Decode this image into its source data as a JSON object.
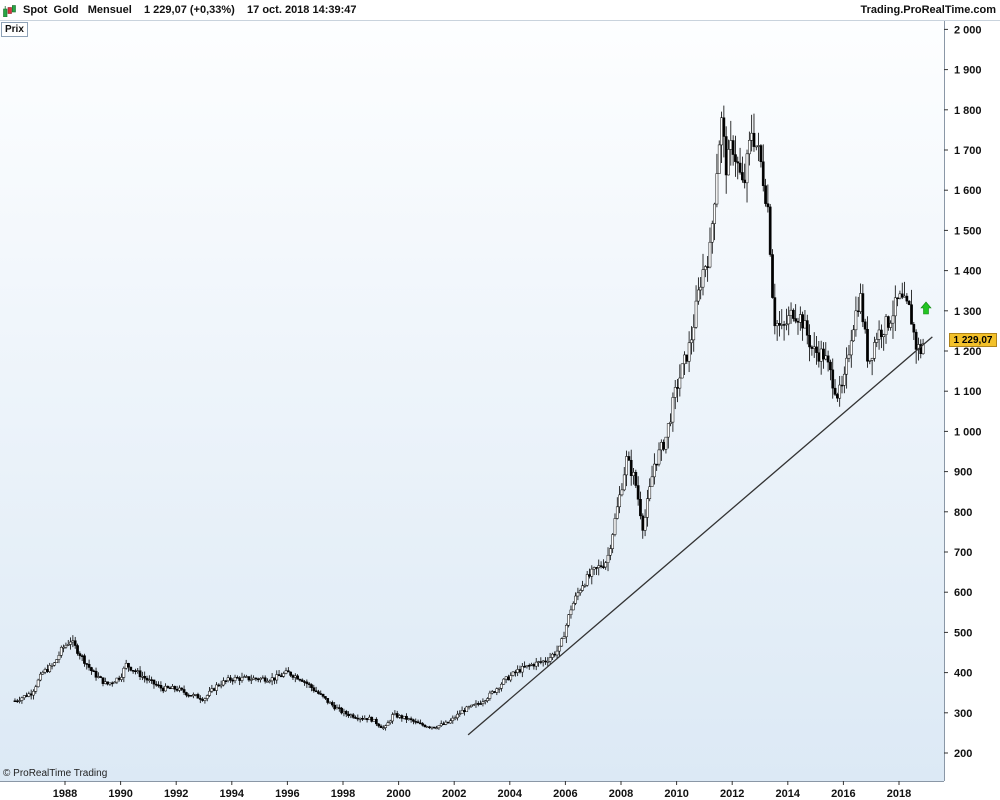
{
  "header": {
    "title": "Spot  Gold   Mensuel    1 229,07 (+0,33%)    17 oct. 2018 14:39:47",
    "site": "Trading.ProRealTime.com"
  },
  "panel_label": "Prix",
  "copyright": "© ProRealTime Trading",
  "last_price_label": "1 229,07",
  "colors": {
    "background": "#eaf2f9",
    "up_candle": "#ffffff",
    "down_candle": "#000000",
    "wick": "#000000",
    "trend_line": "#333333",
    "price_tag": "#f3c12a",
    "arrow": "#22c422"
  },
  "icons": [
    "logo-icon",
    "up-arrow-icon"
  ],
  "chart_data": {
    "type": "candlestick",
    "instrument": "Spot Gold",
    "interval": "Mensuel",
    "x_ticks": [
      "1988",
      "1990",
      "1992",
      "1994",
      "1996",
      "1998",
      "2000",
      "2002",
      "2004",
      "2006",
      "2008",
      "2010",
      "2012",
      "2014",
      "2016",
      "2018"
    ],
    "y_ticks": [
      "2 000",
      "1 900",
      "1 800",
      "1 700",
      "1 600",
      "1 500",
      "1 400",
      "1 300",
      "1 200",
      "1 100",
      "1 000",
      "900",
      "800",
      "700",
      "600",
      "500",
      "400",
      "300",
      "200"
    ],
    "y_range": [
      160,
      2030
    ],
    "x_range": [
      1986.15,
      1999.0
    ],
    "last_price": 1229.07,
    "trend_line": {
      "start": [
        2002.5,
        245
      ],
      "end": [
        2019.2,
        1235
      ]
    },
    "anchors": [
      [
        1986.2,
        330
      ],
      [
        1986.8,
        350
      ],
      [
        1987.2,
        400
      ],
      [
        1987.6,
        420
      ],
      [
        1987.9,
        460
      ],
      [
        1988.2,
        480
      ],
      [
        1988.6,
        440
      ],
      [
        1989.0,
        400
      ],
      [
        1989.5,
        370
      ],
      [
        1990.0,
        390
      ],
      [
        1990.2,
        420
      ],
      [
        1990.6,
        400
      ],
      [
        1991.0,
        380
      ],
      [
        1991.5,
        360
      ],
      [
        1992.0,
        360
      ],
      [
        1992.5,
        345
      ],
      [
        1993.0,
        335
      ],
      [
        1993.5,
        370
      ],
      [
        1994.0,
        385
      ],
      [
        1994.5,
        385
      ],
      [
        1995.0,
        385
      ],
      [
        1995.5,
        385
      ],
      [
        1996.0,
        400
      ],
      [
        1996.5,
        385
      ],
      [
        1997.0,
        355
      ],
      [
        1997.5,
        325
      ],
      [
        1998.0,
        300
      ],
      [
        1998.5,
        290
      ],
      [
        1999.0,
        285
      ],
      [
        1999.5,
        260
      ],
      [
        1999.8,
        295
      ],
      [
        2000.3,
        285
      ],
      [
        2000.8,
        270
      ],
      [
        2001.3,
        265
      ],
      [
        2001.8,
        275
      ],
      [
        2002.3,
        305
      ],
      [
        2002.8,
        320
      ],
      [
        2003.3,
        345
      ],
      [
        2003.8,
        380
      ],
      [
        2004.3,
        405
      ],
      [
        2004.8,
        420
      ],
      [
        2005.3,
        430
      ],
      [
        2005.8,
        460
      ],
      [
        2006.2,
        560
      ],
      [
        2006.6,
        620
      ],
      [
        2007.0,
        650
      ],
      [
        2007.5,
        680
      ],
      [
        2007.9,
        820
      ],
      [
        2008.2,
        930
      ],
      [
        2008.5,
        880
      ],
      [
        2008.8,
        760
      ],
      [
        2009.2,
        920
      ],
      [
        2009.6,
        980
      ],
      [
        2010.0,
        1110
      ],
      [
        2010.5,
        1220
      ],
      [
        2010.9,
        1390
      ],
      [
        2011.2,
        1450
      ],
      [
        2011.6,
        1780
      ],
      [
        2011.8,
        1650
      ],
      [
        2012.0,
        1720
      ],
      [
        2012.4,
        1600
      ],
      [
        2012.7,
        1750
      ],
      [
        2013.0,
        1680
      ],
      [
        2013.3,
        1550
      ],
      [
        2013.5,
        1280
      ],
      [
        2013.8,
        1250
      ],
      [
        2014.2,
        1300
      ],
      [
        2014.5,
        1280
      ],
      [
        2014.9,
        1200
      ],
      [
        2015.3,
        1190
      ],
      [
        2015.8,
        1090
      ],
      [
        2016.0,
        1110
      ],
      [
        2016.3,
        1250
      ],
      [
        2016.6,
        1340
      ],
      [
        2016.9,
        1170
      ],
      [
        2017.2,
        1240
      ],
      [
        2017.6,
        1270
      ],
      [
        2018.0,
        1330
      ],
      [
        2018.4,
        1300
      ],
      [
        2018.6,
        1215
      ],
      [
        2018.8,
        1200
      ],
      [
        2018.9,
        1229
      ]
    ]
  }
}
